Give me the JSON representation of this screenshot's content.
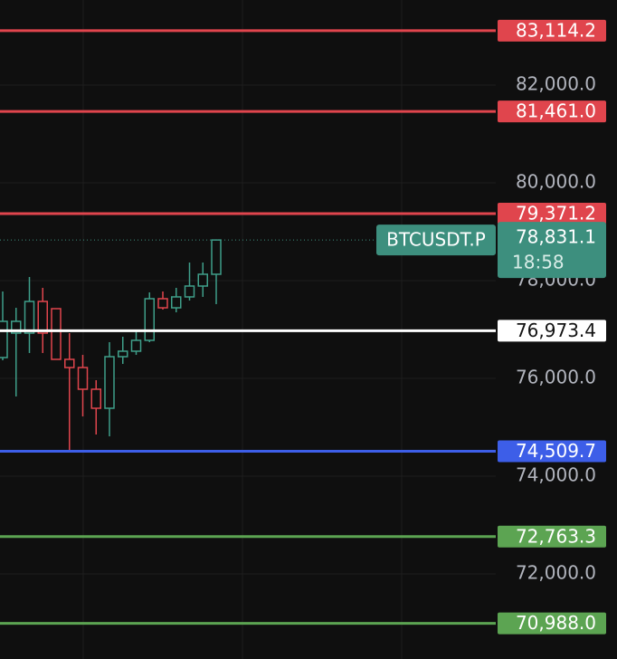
{
  "chart_data": {
    "type": "candlestick",
    "categories": [
      null,
      null,
      null,
      null,
      null,
      null,
      null,
      null,
      null,
      null,
      null,
      null,
      null,
      null,
      null,
      null,
      null
    ],
    "open": [
      76426,
      76926,
      76926,
      77574,
      77426,
      76389,
      76222,
      75778,
      75389,
      76444,
      76556,
      76778,
      77630,
      77444,
      77667,
      77889,
      78130
    ],
    "high": [
      77778,
      77444,
      78074,
      77852,
      77426,
      76926,
      76481,
      75963,
      76741,
      76852,
      76981,
      77759,
      77778,
      77852,
      78370,
      78370,
      78831.1
    ],
    "low": [
      76370,
      75630,
      76519,
      76519,
      76389,
      74481,
      75222,
      74852,
      74815,
      76296,
      76481,
      76741,
      77407,
      77352,
      77593,
      77667,
      77519
    ],
    "close": [
      77167,
      77167,
      77574,
      76926,
      76389,
      76222,
      75778,
      75389,
      76444,
      76556,
      76778,
      77630,
      77444,
      77667,
      77889,
      78130,
      78831.1
    ],
    "up_color": "#3f9f8a",
    "down_color": "#e0454d",
    "ylim": [
      70259.3,
      83740.7
    ],
    "yticks": [
      {
        "value": 72000,
        "label": "72,000.0"
      },
      {
        "value": 74000,
        "label": "74,000.0"
      },
      {
        "value": 76000,
        "label": "76,000.0"
      },
      {
        "value": 78000,
        "label": "78,000.0"
      },
      {
        "value": 80000,
        "label": "80,000.0"
      },
      {
        "value": 82000,
        "label": "82,000.0"
      }
    ],
    "grid": true,
    "levels": [
      {
        "value": 83114.2,
        "label": "83,114.2",
        "color": "#e0454d",
        "text_color": "#ffffff"
      },
      {
        "value": 81461.0,
        "label": "81,461.0",
        "color": "#e0454d",
        "text_color": "#ffffff"
      },
      {
        "value": 79371.2,
        "label": "79,371.2",
        "color": "#e0454d",
        "text_color": "#ffffff"
      },
      {
        "value": 76973.4,
        "label": "76,973.4",
        "color": "#ffffff",
        "text_color": "#131313"
      },
      {
        "value": 74509.7,
        "label": "74,509.7",
        "color": "#3d5ee8",
        "text_color": "#ffffff"
      },
      {
        "value": 72763.3,
        "label": "72,763.3",
        "color": "#5ca452",
        "text_color": "#ffffff"
      },
      {
        "value": 70988.0,
        "label": "70,988.0",
        "color": "#5ca452",
        "text_color": "#ffffff"
      }
    ],
    "current": {
      "symbol": "BTCUSDT.P",
      "price": {
        "value": 78831.1,
        "label": "78,831.1"
      },
      "countdown": "18:58",
      "color": "#3d8f7e"
    }
  }
}
